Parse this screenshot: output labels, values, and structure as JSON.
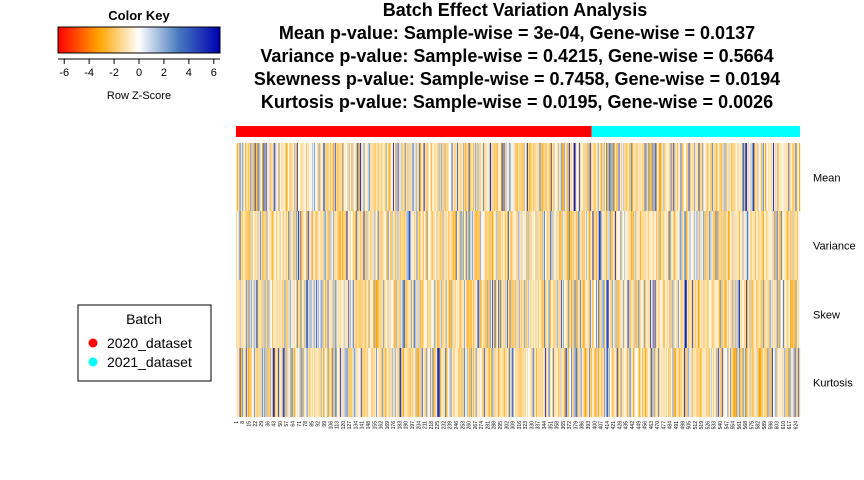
{
  "chart_data": {
    "type": "heatmap",
    "title_lines": [
      "Batch Effect Variation Analysis",
      "Mean p-value: Sample-wise = 3e-04, Gene-wise = 0.0137",
      "Variance p-value: Sample-wise = 0.4215, Gene-wise = 0.5664",
      "Skewness p-value: Sample-wise = 0.7458, Gene-wise = 0.0194",
      "Kurtosis p-value: Sample-wise = 0.0195, Gene-wise = 0.0026"
    ],
    "rows": [
      "Mean",
      "Variance",
      "Skew",
      "Kurtosis"
    ],
    "n_columns": 628,
    "column_tick_labels": [
      "1",
      "8",
      "15",
      "22",
      "29",
      "36",
      "43",
      "50",
      "57",
      "64",
      "71",
      "78",
      "85",
      "92",
      "99",
      "106",
      "113",
      "120",
      "127",
      "134",
      "141",
      "148",
      "155",
      "162",
      "169",
      "176",
      "183",
      "190",
      "197",
      "204",
      "211",
      "218",
      "225",
      "232",
      "239",
      "246",
      "253",
      "260",
      "267",
      "274",
      "281",
      "288",
      "295",
      "302",
      "309",
      "316",
      "323",
      "330",
      "337",
      "344",
      "351",
      "358",
      "365",
      "372",
      "379",
      "386",
      "393",
      "400",
      "407",
      "414",
      "421",
      "428",
      "435",
      "442",
      "449",
      "456",
      "463",
      "470",
      "477",
      "484",
      "491",
      "498",
      "505",
      "512",
      "519",
      "526",
      "533",
      "540",
      "547",
      "554",
      "561",
      "568",
      "575",
      "582",
      "589",
      "596",
      "603",
      "610",
      "617",
      "624"
    ],
    "batches": [
      {
        "name": "2020_dataset",
        "color": "#ff0000",
        "n_samples": 396
      },
      {
        "name": "2021_dataset",
        "color": "#00ffff",
        "n_samples": 232
      }
    ],
    "color_key": {
      "title": "Color Key",
      "xlabel": "Row Z-Score",
      "range": [
        -6.5,
        6.5
      ],
      "ticks": [
        "-6",
        "-4",
        "-2",
        "0",
        "2",
        "4",
        "6"
      ],
      "low_color": "#ff0000",
      "mid_low_color": "#ffa500",
      "mid_color": "#ffffff",
      "high_color": "#0000b0"
    },
    "legend": {
      "title": "Batch",
      "placement": "left"
    }
  }
}
